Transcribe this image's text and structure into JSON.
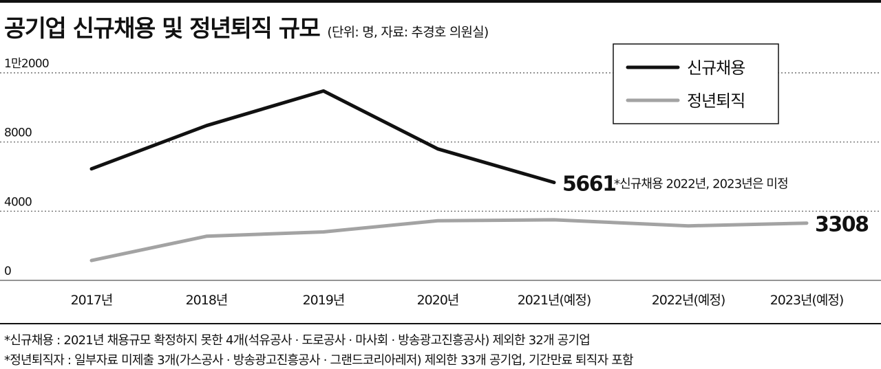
{
  "header": {
    "title": "공기업 신규채용 및 정년퇴직 규모",
    "subtitle": "(단위: 명, 자료: 추경호 의원실)"
  },
  "chart_data": {
    "type": "line",
    "title": "공기업 신규채용 및 정년퇴직 규모",
    "categories": [
      "2017년",
      "2018년",
      "2019년",
      "2020년",
      "2021년(예정)",
      "2022년(예정)",
      "2023년(예정)"
    ],
    "y_ticks": [
      {
        "value": 0,
        "label": "0"
      },
      {
        "value": 4000,
        "label": "4000"
      },
      {
        "value": 8000,
        "label": "8000"
      },
      {
        "value": 12000,
        "label": "1만2000"
      }
    ],
    "ylim": [
      0,
      12000
    ],
    "grid": "horizontal-dotted",
    "legend_position": "top-right",
    "series": [
      {
        "name": "신규채용",
        "color": "#111111",
        "values": [
          6450,
          8950,
          10950,
          7600,
          5661,
          null,
          null
        ],
        "end_label": "5661"
      },
      {
        "name": "정년퇴직",
        "color": "#a3a3a3",
        "values": [
          1150,
          2550,
          2800,
          3450,
          3500,
          3150,
          3308
        ],
        "end_label": "3308"
      }
    ],
    "annotation": "*신규채용 2022년, 2023년은 미정"
  },
  "footnotes": [
    "*신규채용 : 2021년 채용규모 확정하지 못한 4개(석유공사 · 도로공사 · 마사회 · 방송광고진흥공사) 제외한 32개 공기업",
    "*정년퇴직자 : 일부자료 미제출 3개(가스공사 · 방송광고진흥공사 · 그랜드코리아레저) 제외한 33개 공기업, 기간만료 퇴직자 포함"
  ]
}
